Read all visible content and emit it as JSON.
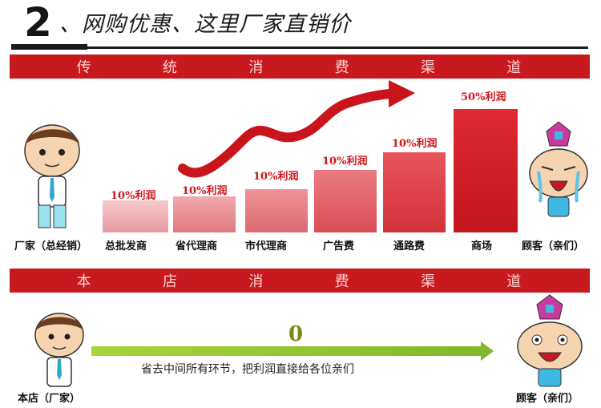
{
  "header": {
    "number": "2",
    "title": "、网购优惠、这里厂家直销价"
  },
  "traditional": {
    "banner": [
      "传",
      "统",
      "消",
      "费",
      "渠",
      "道"
    ],
    "steps": [
      {
        "label": "厂家（总经销）"
      },
      {
        "label": "总批发商",
        "percent": "10%利润"
      },
      {
        "label": "省代理商",
        "percent": "10%利润"
      },
      {
        "label": "市代理商",
        "percent": "10%利润"
      },
      {
        "label": "广告费",
        "percent": "10%利润"
      },
      {
        "label": "通路费",
        "percent": "10%利润"
      },
      {
        "label": "商场",
        "percent": "50%利润"
      },
      {
        "label": "顾客（亲们）"
      }
    ]
  },
  "store": {
    "banner": [
      "本",
      "店",
      "消",
      "费",
      "渠",
      "道"
    ],
    "left_label": "本店（厂家）",
    "right_label": "顾客（亲们）",
    "zero": "0",
    "message": "省去中间所有环节，把利润直接给各位亲们"
  },
  "colors": {
    "banner_red": "#c8191f",
    "bar_red": "#d9252b",
    "arrow_green": "#8cc63f"
  }
}
